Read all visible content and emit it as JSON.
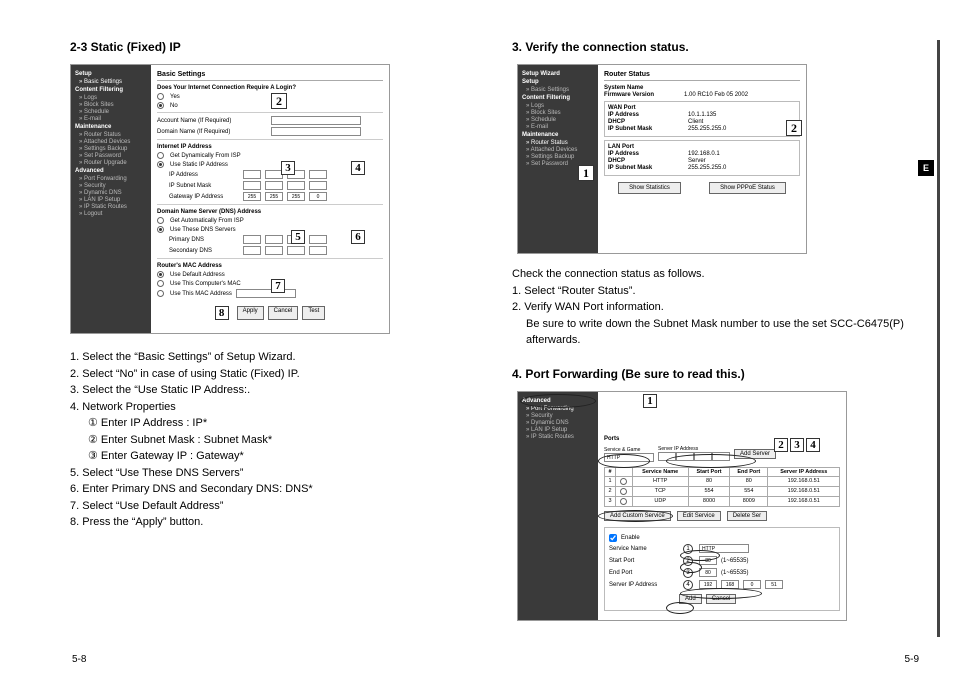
{
  "left": {
    "title": "2-3 Static (Fixed) IP",
    "shot": {
      "panelTitle": "Basic Settings",
      "sidebar": {
        "groups": [
          {
            "title": "Setup",
            "items": [
              "Basic Settings"
            ]
          },
          {
            "title": "Content Filtering",
            "items": [
              "Logs",
              "Block Sites",
              "Schedule",
              "E-mail"
            ]
          },
          {
            "title": "Maintenance",
            "items": [
              "Router Status",
              "Attached Devices",
              "Settings Backup",
              "Set Password",
              "Router Upgrade"
            ]
          },
          {
            "title": "Advanced",
            "items": [
              "Port Forwarding",
              "Security",
              "Dynamic DNS",
              "LAN IP Setup",
              "IP Static Routes"
            ]
          },
          {
            "title": "",
            "items": [
              "Logout"
            ]
          }
        ]
      },
      "q": "Does Your Internet Connection Require A Login?",
      "yes": "Yes",
      "no": "No",
      "acct": "Account Name (If Required)",
      "domain": "Domain Name (If Required)",
      "iip": "Internet IP Address",
      "iipOpt1": "Get Dynamically From ISP",
      "iipOpt2": "Use Static IP Address",
      "ipaddr": "IP Address",
      "subnet": "IP Subnet Mask",
      "gateway": "Gateway IP Address",
      "gatewayVals": [
        "255",
        "255",
        "255",
        "0"
      ],
      "dns": "Domain Name Server (DNS) Address",
      "dnsOpt1": "Get Automatically From ISP",
      "dnsOpt2": "Use These DNS Servers",
      "pdns": "Primary DNS",
      "sdns": "Secondary DNS",
      "mac": "Router's MAC Address",
      "macOpt1": "Use Default Address",
      "macOpt2": "Use This Computer's MAC",
      "macOpt3": "Use This MAC Address",
      "btns": [
        "Apply",
        "Cancel",
        "Test"
      ],
      "callouts": {
        "2": "2",
        "3": "3",
        "4": "4",
        "5": "5",
        "6": "6",
        "7": "7",
        "8": "8"
      }
    },
    "steps": [
      "1. Select the “Basic Settings” of Setup Wizard.",
      "2. Select “No” in case of using Static (Fixed) IP.",
      "3. Select the “Use Static IP Address:.",
      "4. Network Properties",
      "5. Select “Use These DNS Servers”",
      "6. Enter Primary DNS and Secondary DNS: DNS*",
      "7. Select “Use Default Address”",
      "8. Press the “Apply” button."
    ],
    "subs": [
      "① Enter IP Address : IP*",
      "② Enter Subnet Mask : Subnet Mask*",
      "③ Enter Gateway IP : Gateway*"
    ],
    "pageno": "5-8"
  },
  "right": {
    "title1": "3. Verify the connection status.",
    "statusShot": {
      "panelTitle": "Router Status",
      "sidebar": {
        "groups": [
          {
            "title": "Setup Wizard",
            "items": []
          },
          {
            "title": "Setup",
            "items": [
              "Basic Settings"
            ]
          },
          {
            "title": "Content Filtering",
            "items": [
              "Logs",
              "Block Sites",
              "Schedule",
              "E-mail"
            ]
          },
          {
            "title": "Maintenance",
            "items": [
              "Router Status",
              "Attached Devices",
              "Settings Backup",
              "Set Password"
            ]
          }
        ]
      },
      "sysName": "System Name",
      "fw": "Firmware Version",
      "fwVal": "1.00 RC10 Feb 05 2002",
      "wan": "WAN Port",
      "ip": "IP Address",
      "ipVal": "10.1.1.135",
      "dhcp": "DHCP",
      "dhcpVal": "Client",
      "sm": "IP Subnet Mask",
      "smVal": "255.255.255.0",
      "lan": "LAN Port",
      "lip": "IP Address",
      "lipVal": "192.168.0.1",
      "ldhcp": "DHCP",
      "ldhcpVal": "Server",
      "lsm": "IP Subnet Mask",
      "lsmVal": "255.255.255.0",
      "btn1": "Show Statistics",
      "btn2": "Show PPPoE Status",
      "callouts": {
        "1": "1",
        "2": "2"
      }
    },
    "statusText": [
      "Check the connection status as follows.",
      "1. Select “Router Status”.",
      "2. Verify WAN Port information.",
      "Be sure to write down the Subnet Mask number to use the set SCC-C6475(P) afterwards."
    ],
    "title2": "4. Port Forwarding (Be sure to read this.)",
    "pfShot": {
      "sidebar": {
        "groups": [
          {
            "title": "Advanced",
            "items": [
              "Port Forwarding",
              "Security",
              "Dynamic DNS",
              "LAN IP Setup",
              "IP Static Routes"
            ]
          }
        ]
      },
      "portsHdr": "Ports",
      "svcName": "Service & Game",
      "svcNameVal": "HTTP",
      "srvIp": "Server IP Address",
      "addServer": "Add Server",
      "cols": [
        "#",
        "",
        "Service Name",
        "Start Port",
        "End Port",
        "Server IP Address"
      ],
      "rows": [
        [
          "1",
          "",
          "HTTP",
          "80",
          "80",
          "192.168.0.51"
        ],
        [
          "2",
          "",
          "TCP",
          "554",
          "554",
          "192.168.0.51"
        ],
        [
          "3",
          "",
          "UDP",
          "8000",
          "8009",
          "192.168.0.51"
        ]
      ],
      "btns3": [
        "Add Custom Service",
        "Edit Service",
        "Delete Ser"
      ],
      "enable": "Enable",
      "formSvc": "Service Name",
      "formSvcVal": "HTTP",
      "formStart": "Start Port",
      "formStartVal": "80",
      "range": "(1~65535)",
      "formEnd": "End Port",
      "formEndVal": "80",
      "formIp": "Server IP Address",
      "formIpVals": [
        "192",
        "168",
        "0",
        "51"
      ],
      "ok": "Add",
      "cancel": "Cancel",
      "callouts": {
        "1": "1",
        "2": "2",
        "3": "3",
        "4": "4"
      }
    },
    "pageno": "5-9"
  },
  "tab": "E"
}
